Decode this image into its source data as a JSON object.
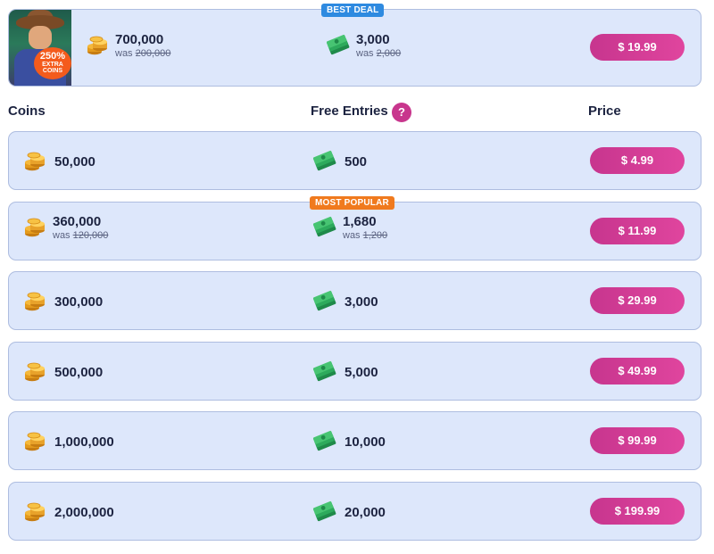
{
  "featured": {
    "badge": "BEST DEAL",
    "promo_big": "250%",
    "promo_small": "EXTRA COINS",
    "coins": "700,000",
    "coins_was_prefix": "was",
    "coins_was": "200,000",
    "entries": "3,000",
    "entries_was_prefix": "was",
    "entries_was": "2,000",
    "price": "$ 19.99"
  },
  "header": {
    "coins": "Coins",
    "free_entries": "Free Entries",
    "help": "?",
    "price": "Price"
  },
  "rows": [
    {
      "coins": "50,000",
      "entries": "500",
      "price": "$ 4.99"
    },
    {
      "badge": "MOST POPULAR",
      "coins": "360,000",
      "coins_was_prefix": "was",
      "coins_was": "120,000",
      "entries": "1,680",
      "entries_was_prefix": "was",
      "entries_was": "1,200",
      "price": "$ 11.99"
    },
    {
      "coins": "300,000",
      "entries": "3,000",
      "price": "$ 29.99"
    },
    {
      "coins": "500,000",
      "entries": "5,000",
      "price": "$ 49.99"
    },
    {
      "coins": "1,000,000",
      "entries": "10,000",
      "price": "$ 99.99"
    },
    {
      "coins": "2,000,000",
      "entries": "20,000",
      "price": "$ 199.99"
    }
  ],
  "icons": {
    "coin": "coin-stack-icon",
    "entry": "cash-stack-icon"
  },
  "colors": {
    "price_button": "#d23d96",
    "best_badge": "#2e8ae0",
    "popular_badge": "#f07a1e",
    "card_bg": "#dde7fb"
  }
}
